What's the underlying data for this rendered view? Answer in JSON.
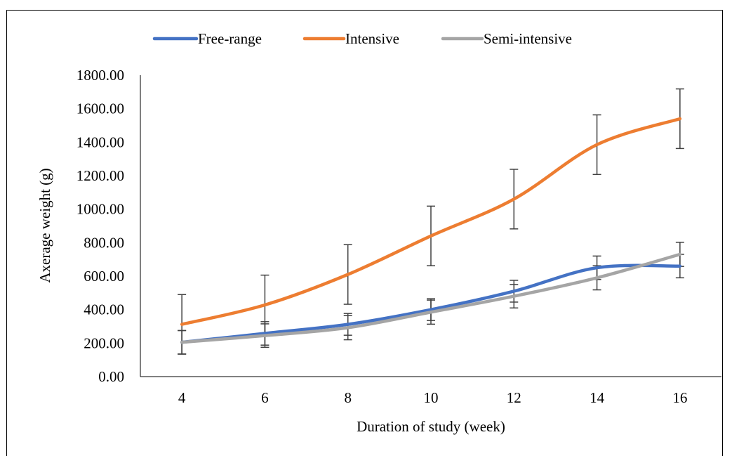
{
  "chart_data": {
    "type": "line",
    "title": "",
    "xlabel": "Duration of study (week)",
    "ylabel": "Axerage weight (g)",
    "x": [
      4,
      6,
      8,
      10,
      12,
      14,
      16
    ],
    "x_tick_labels": [
      "4",
      "6",
      "8",
      "10",
      "12",
      "14",
      "16"
    ],
    "ylim": [
      0,
      1800
    ],
    "y_tick_labels": [
      "0.00",
      "200.00",
      "400.00",
      "600.00",
      "800.00",
      "1000.00",
      "1200.00",
      "1400.00",
      "1600.00",
      "1800.00"
    ],
    "grid": false,
    "legend_position": "top",
    "series": [
      {
        "name": "Free-range",
        "color": "#4472C4",
        "values": [
          205,
          258,
          312,
          400,
          510,
          650,
          660
        ],
        "error": [
          70,
          70,
          65,
          65,
          65,
          70,
          70
        ]
      },
      {
        "name": "Intensive",
        "color": "#ED7D31",
        "values": [
          312,
          428,
          610,
          840,
          1060,
          1385,
          1540
        ],
        "error": [
          178,
          178,
          178,
          178,
          178,
          178,
          178
        ]
      },
      {
        "name": "Semi-intensive",
        "color": "#A5A5A5",
        "values": [
          205,
          245,
          292,
          385,
          480,
          590,
          730
        ],
        "error": [
          70,
          70,
          72,
          72,
          70,
          72,
          72
        ]
      }
    ]
  }
}
